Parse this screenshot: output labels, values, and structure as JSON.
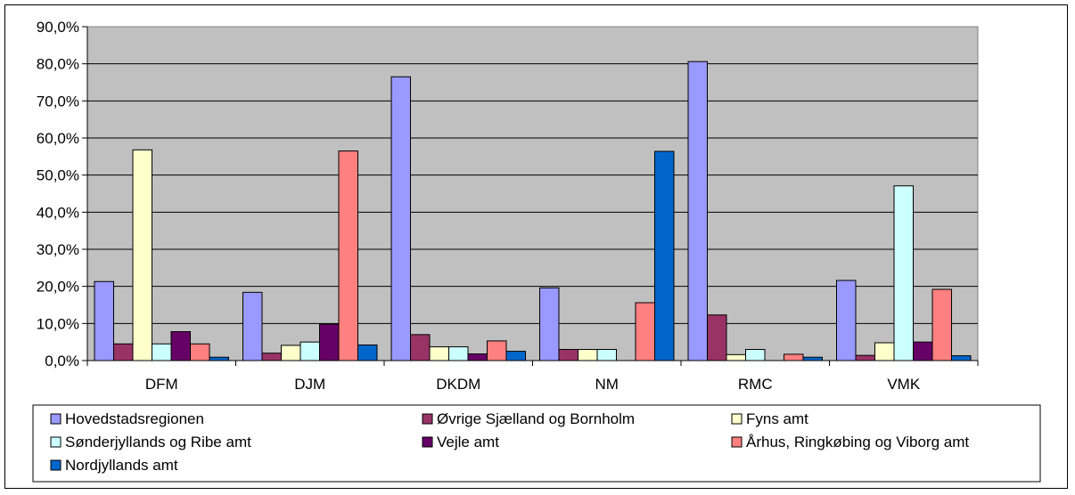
{
  "chart_data": {
    "type": "bar",
    "categories": [
      "DFM",
      "DJM",
      "DKDM",
      "NM",
      "RMC",
      "VMK"
    ],
    "ylim": [
      0,
      90
    ],
    "yticks": [
      "0,0%",
      "10,0%",
      "20,0%",
      "30,0%",
      "40,0%",
      "50,0%",
      "60,0%",
      "70,0%",
      "80,0%",
      "90,0%"
    ],
    "grid": true,
    "legend_position": "bottom",
    "plot_background": "#c0c0c0",
    "series": [
      {
        "name": "Hovedstadsregionen",
        "color": "#9999ff",
        "values": [
          21.3,
          18.4,
          76.5,
          19.6,
          80.6,
          21.6
        ]
      },
      {
        "name": "Øvrige Sjælland og Bornholm",
        "color": "#993366",
        "values": [
          4.5,
          2.0,
          7.0,
          3.0,
          12.3,
          1.4
        ]
      },
      {
        "name": "Fyns amt",
        "color": "#ffffcc",
        "values": [
          56.8,
          4.1,
          3.7,
          3.0,
          1.6,
          4.8
        ]
      },
      {
        "name": "Sønderjyllands  og Ribe amt",
        "color": "#ccffff",
        "values": [
          4.5,
          5.0,
          3.7,
          3.0,
          3.0,
          47.1
        ]
      },
      {
        "name": "Vejle amt",
        "color": "#660066",
        "values": [
          7.8,
          9.8,
          1.8,
          0,
          0,
          5.0
        ]
      },
      {
        "name": "Århus, Ringkøbing og Viborg amt",
        "color": "#ff8080",
        "values": [
          4.5,
          56.5,
          5.3,
          15.6,
          1.7,
          19.2
        ]
      },
      {
        "name": "Nordjyllands amt",
        "color": "#0066cc",
        "values": [
          0.9,
          4.2,
          2.5,
          56.4,
          0.9,
          1.3
        ]
      }
    ]
  }
}
